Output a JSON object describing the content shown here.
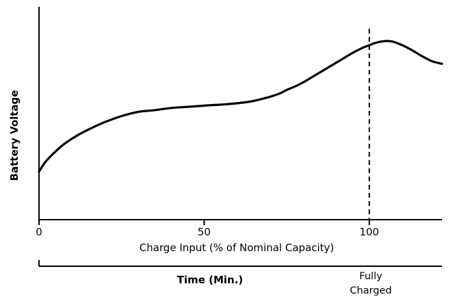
{
  "chart_data": {
    "type": "line",
    "xlabel": "Charge Input (% of Nominal Capacity)",
    "ylabel": "Battery Voltage",
    "xlim": [
      0,
      122
    ],
    "x_ticks": [
      {
        "value": 0,
        "label": "0"
      },
      {
        "value": 50,
        "label": "50"
      },
      {
        "value": 100,
        "label": "100"
      }
    ],
    "y_ticks_shown": false,
    "grid": false,
    "series": [
      {
        "x": [
          0,
          2,
          5,
          8,
          12,
          16,
          20,
          25,
          30,
          35,
          40,
          45,
          50,
          55,
          60,
          65,
          70,
          73,
          75,
          78,
          80,
          83,
          86,
          89,
          92,
          95,
          98,
          100,
          102,
          105,
          107,
          110,
          113,
          116,
          119,
          122
        ],
        "y": [
          0.28,
          0.34,
          0.4,
          0.45,
          0.5,
          0.54,
          0.575,
          0.61,
          0.635,
          0.645,
          0.658,
          0.665,
          0.672,
          0.678,
          0.686,
          0.7,
          0.725,
          0.745,
          0.765,
          0.79,
          0.81,
          0.845,
          0.88,
          0.915,
          0.95,
          0.985,
          1.015,
          1.03,
          1.045,
          1.055,
          1.052,
          1.03,
          1.0,
          0.965,
          0.935,
          0.92
        ]
      }
    ],
    "annotations": [
      {
        "type": "vline",
        "x": 100,
        "style": "dashed"
      }
    ],
    "secondary_axis": {
      "label": "Time (Min.)",
      "annotation": [
        "Fully",
        "Charged"
      ]
    }
  }
}
